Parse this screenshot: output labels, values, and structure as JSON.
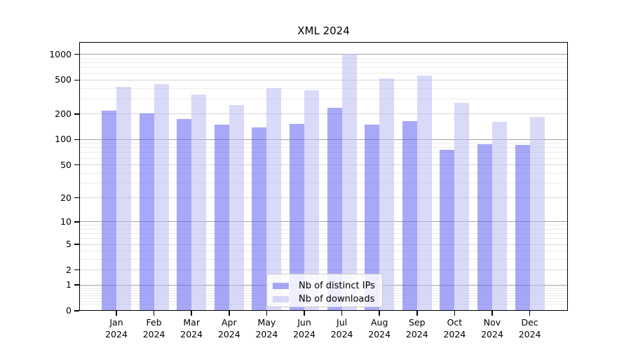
{
  "title": "XML 2024",
  "chart_data": {
    "type": "bar",
    "title": "XML 2024",
    "categories": [
      "Jan 2024",
      "Feb 2024",
      "Mar 2024",
      "Apr 2024",
      "May 2024",
      "Jun 2024",
      "Jul 2024",
      "Aug 2024",
      "Sep 2024",
      "Oct 2024",
      "Nov 2024",
      "Dec 2024"
    ],
    "series": [
      {
        "name": "Nb of distinct IPs",
        "color": "rgba(97,97,242,0.55)",
        "color_hex_over_white": "#a8a8f5",
        "values": [
          218,
          202,
          173,
          150,
          140,
          154,
          235,
          150,
          165,
          75,
          88,
          86
        ]
      },
      {
        "name": "Nb of downloads",
        "color": "rgba(185,185,243,0.55)",
        "color_hex_over_white": "#d9d9f6",
        "values": [
          420,
          452,
          340,
          255,
          400,
          380,
          1010,
          520,
          565,
          270,
          161,
          186
        ]
      }
    ],
    "yscale": "log10(value+1)",
    "yticks": [
      0,
      1,
      2,
      5,
      10,
      20,
      50,
      100,
      200,
      500,
      1000
    ],
    "ylim": [
      0,
      1370
    ],
    "grid": true,
    "legend_position": "lower center inside plot"
  },
  "colors": {
    "background": "#ffffff",
    "axis": "#000000",
    "grid_power_of_ten": "#a3a3a3",
    "grid_labeled": "#d7d7d7",
    "grid_minor": "#ececec",
    "legend_border": "#cbcbcb"
  }
}
